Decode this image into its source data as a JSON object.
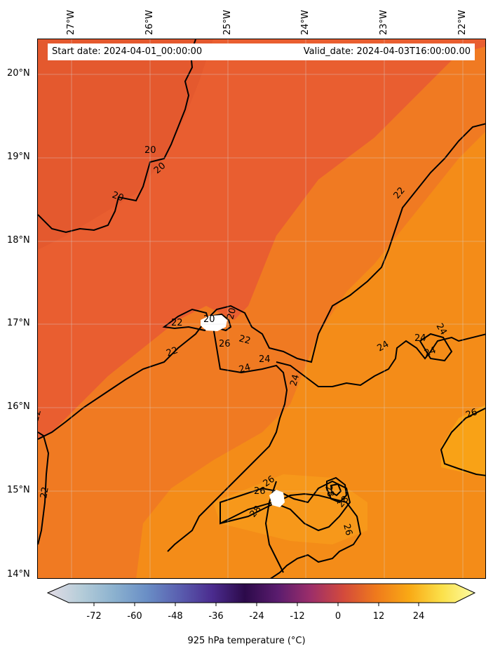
{
  "info": {
    "start_date": "Start date: 2024-04-01_00:00:00",
    "valid_date": "Valid_date: 2024-04-03T16:00:00.00"
  },
  "axes": {
    "lon_labels": [
      "27°W",
      "26°W",
      "25°W",
      "24°W",
      "23°W",
      "22°W"
    ],
    "lat_labels": [
      "20°N",
      "19°N",
      "18°N",
      "17°N",
      "16°N",
      "15°N",
      "14°N"
    ]
  },
  "contour_labels": [
    "20",
    "20",
    "20",
    "20",
    "20",
    "22",
    "22",
    "22",
    "22",
    "22",
    "22",
    "24",
    "24",
    "24",
    "24",
    "24",
    "24",
    "24",
    "26",
    "26",
    "26",
    "26",
    "26",
    "28",
    "28",
    "28"
  ],
  "colorbar": {
    "ticks": [
      "-72",
      "-60",
      "-48",
      "-36",
      "-24",
      "-12",
      "0",
      "12",
      "24"
    ],
    "label": "925 hPa temperature (°C)",
    "colors": [
      "#e3dce6",
      "#b6cdd9",
      "#8cb2cf",
      "#6a8fc6",
      "#5a5fb0",
      "#4b2c8f",
      "#2c0a4a",
      "#5a1c6e",
      "#9c2e6a",
      "#d34a3c",
      "#ef7a1c",
      "#f9a915",
      "#fbe04a",
      "#fcfca4"
    ]
  },
  "map_colors": {
    "cold_field": "#e95e30",
    "mid_field": "#f07a22",
    "warm_field": "#f58e15",
    "hot_field": "#f9a617",
    "contour": "#000000"
  }
}
